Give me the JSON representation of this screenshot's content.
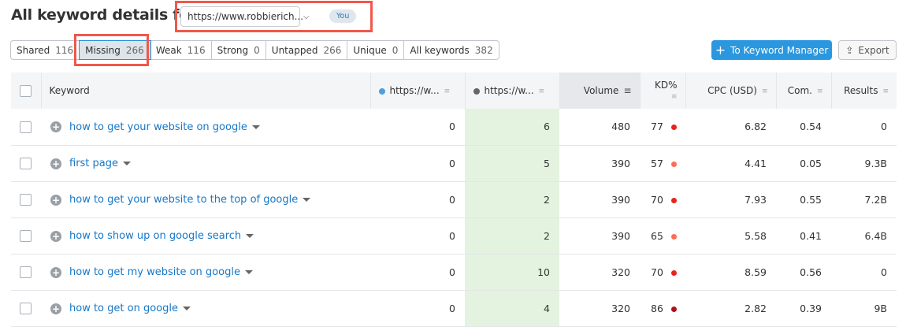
{
  "header": {
    "title": "All keyword details for:",
    "domain": "https://www.robbierich...",
    "you_badge": "You"
  },
  "tabs": [
    {
      "label": "Shared",
      "count": "116"
    },
    {
      "label": "Missing",
      "count": "266",
      "active": true
    },
    {
      "label": "Weak",
      "count": "116"
    },
    {
      "label": "Strong",
      "count": "0"
    },
    {
      "label": "Untapped",
      "count": "266"
    },
    {
      "label": "Unique",
      "count": "0"
    },
    {
      "label": "All keywords",
      "count": "382"
    }
  ],
  "actions": {
    "keyword_manager": "To Keyword Manager",
    "export": "Export"
  },
  "columns": {
    "keyword": "Keyword",
    "domain1": "https://w...",
    "domain2": "https://w...",
    "volume": "Volume",
    "kd": "KD%",
    "cpc": "CPC (USD)",
    "com": "Com.",
    "results": "Results"
  },
  "colors": {
    "domain1": "#4a9fe0",
    "domain2": "#666666",
    "accent": "#2a97df",
    "highlight": "#f0584a"
  },
  "rows": [
    {
      "keyword": "how to get your website on google",
      "d1": "0",
      "d2": "6",
      "volume": "480",
      "kd": "77",
      "kd_color": "#e8231c",
      "cpc": "6.82",
      "com": "0.54",
      "results": "0"
    },
    {
      "keyword": "first page",
      "d1": "0",
      "d2": "5",
      "volume": "390",
      "kd": "57",
      "kd_color": "#ff6b55",
      "cpc": "4.41",
      "com": "0.05",
      "results": "9.3B"
    },
    {
      "keyword": "how to get your website to the top of google",
      "d1": "0",
      "d2": "2",
      "volume": "390",
      "kd": "70",
      "kd_color": "#e8231c",
      "cpc": "7.93",
      "com": "0.55",
      "results": "7.2B"
    },
    {
      "keyword": "how to show up on google search",
      "d1": "0",
      "d2": "2",
      "volume": "390",
      "kd": "65",
      "kd_color": "#ff6b55",
      "cpc": "5.58",
      "com": "0.41",
      "results": "6.4B"
    },
    {
      "keyword": "how to get my website on google",
      "d1": "0",
      "d2": "10",
      "volume": "320",
      "kd": "70",
      "kd_color": "#e8231c",
      "cpc": "8.59",
      "com": "0.56",
      "results": "0"
    },
    {
      "keyword": "how to get on google",
      "d1": "0",
      "d2": "4",
      "volume": "320",
      "kd": "86",
      "kd_color": "#b0101a",
      "cpc": "2.82",
      "com": "0.39",
      "results": "9B"
    }
  ]
}
